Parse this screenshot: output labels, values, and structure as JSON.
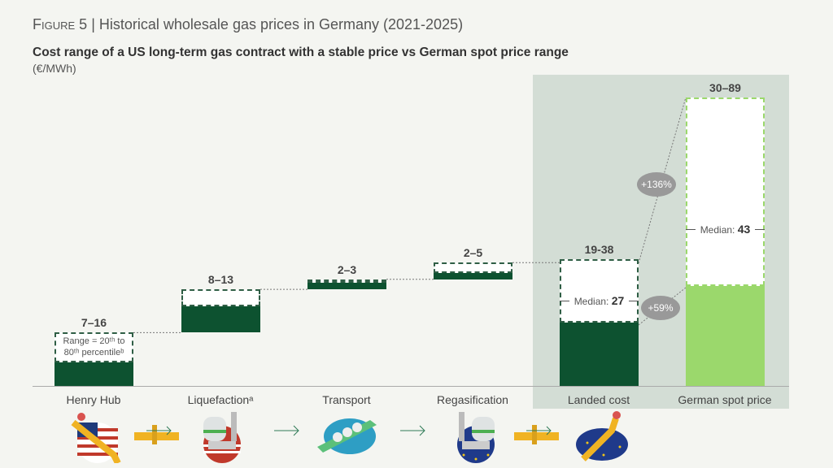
{
  "header": {
    "figure_label": "Figure 5",
    "title": "Historical wholesale gas prices in Germany (2021-2025)",
    "subtitle": "Cost range of a US long-term gas contract with a stable price vs German spot price range",
    "unit": "(€/MWh)"
  },
  "chart_data": {
    "type": "bar",
    "subtype": "waterfall-range",
    "ylabel": "€/MWh",
    "categories": [
      "Henry Hub",
      "Liquefactionᵃ",
      "Transport",
      "Regasification",
      "Landed cost",
      "German spot price"
    ],
    "ranges": [
      {
        "label": "7–16",
        "low": 7,
        "high": 16
      },
      {
        "label": "8–13",
        "low": 8,
        "high": 13
      },
      {
        "label": "2–3",
        "low": 2,
        "high": 3
      },
      {
        "label": "2–5",
        "low": 2,
        "high": 5
      },
      {
        "label": "19-38",
        "low": 19,
        "high": 38,
        "median": 27,
        "median_label": "Median:"
      },
      {
        "label": "30–89",
        "low": 30,
        "high": 89,
        "median": 43,
        "median_label": "Median:"
      }
    ],
    "annotations": {
      "range_note_1": "Range = 20ᵗʰ to",
      "range_note_2": "80ᵗʰ percentileᵇ",
      "increase_low": "+59%",
      "increase_high": "+136%"
    },
    "colors": {
      "us_contract": "#0d5230",
      "german_spot": "#9bd86c",
      "highlight_bg": "#d3ddd5"
    }
  },
  "icons": [
    "us-gas-valve-icon",
    "pipeline-arrow-icon",
    "us-liquefaction-plant-icon",
    "arrow-icon",
    "lng-tanker-icon",
    "arrow-icon",
    "eu-regasification-plant-icon",
    "pipeline-arrow-icon",
    "eu-gas-valve-icon"
  ]
}
